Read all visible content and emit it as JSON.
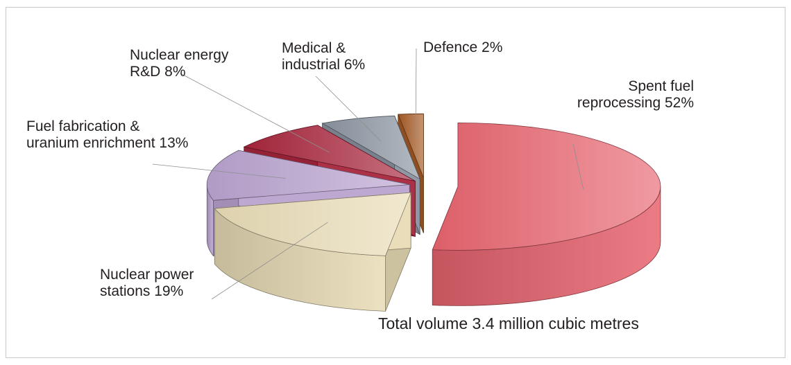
{
  "chart_data": {
    "type": "pie",
    "style": "3d-exploded",
    "slices": [
      {
        "label_lines": [
          "Spent fuel",
          "reprocessing 52%"
        ],
        "category": "Spent fuel reprocessing",
        "value": 52,
        "color": "#e8646f"
      },
      {
        "label_lines": [
          "Nuclear power",
          "stations 19%"
        ],
        "category": "Nuclear power stations",
        "value": 19,
        "color": "#e9dcb6"
      },
      {
        "label_lines": [
          "Fuel fabrication &",
          "uranium enrichment 13%"
        ],
        "category": "Fuel fabrication & uranium enrichment",
        "value": 13,
        "color": "#b9a3cf"
      },
      {
        "label_lines": [
          "Nuclear energy",
          "R&D 8%"
        ],
        "category": "Nuclear energy R&D",
        "value": 8,
        "color": "#a8253c"
      },
      {
        "label_lines": [
          "Medical &",
          "industrial 6%"
        ],
        "category": "Medical & industrial",
        "value": 6,
        "color": "#8a93a0"
      },
      {
        "label_lines": [
          "Defence 2%"
        ],
        "category": "Defence",
        "value": 2,
        "color": "#a55a25"
      }
    ],
    "total_label": "Total volume 3.4 million cubic metres"
  }
}
